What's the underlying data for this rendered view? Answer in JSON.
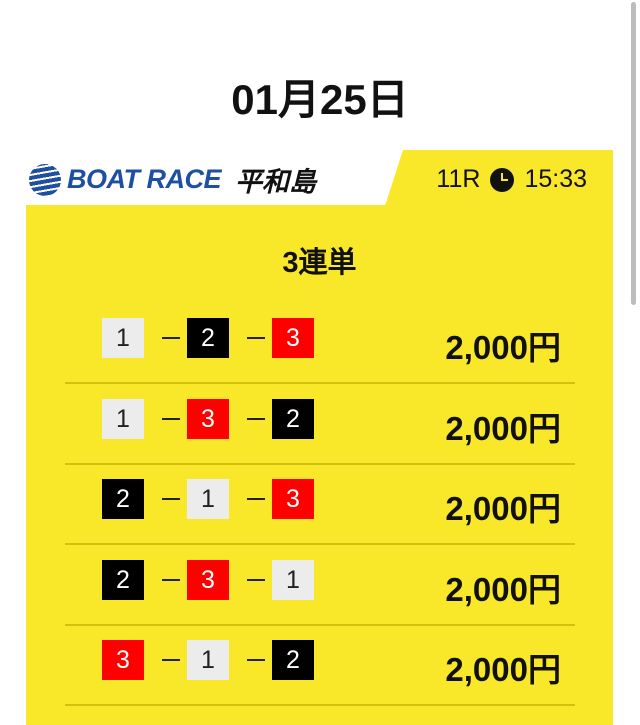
{
  "date": "01月25日",
  "header": {
    "logo_text": "BOAT RACE",
    "venue": "平和島",
    "race": "11R",
    "time": "15:33",
    "clock_icon": "clock-icon"
  },
  "bet_type": "3連単",
  "colors": {
    "panel": "#f9e729",
    "boat1": "#ececec",
    "boat2": "#000000",
    "boat3": "#ff0000",
    "brand": "#1f4fa3"
  },
  "rows": [
    {
      "boats": [
        "1",
        "2",
        "3"
      ],
      "amount": "2,000円"
    },
    {
      "boats": [
        "1",
        "3",
        "2"
      ],
      "amount": "2,000円"
    },
    {
      "boats": [
        "2",
        "1",
        "3"
      ],
      "amount": "2,000円"
    },
    {
      "boats": [
        "2",
        "3",
        "1"
      ],
      "amount": "2,000円"
    },
    {
      "boats": [
        "3",
        "1",
        "2"
      ],
      "amount": "2,000円"
    }
  ]
}
